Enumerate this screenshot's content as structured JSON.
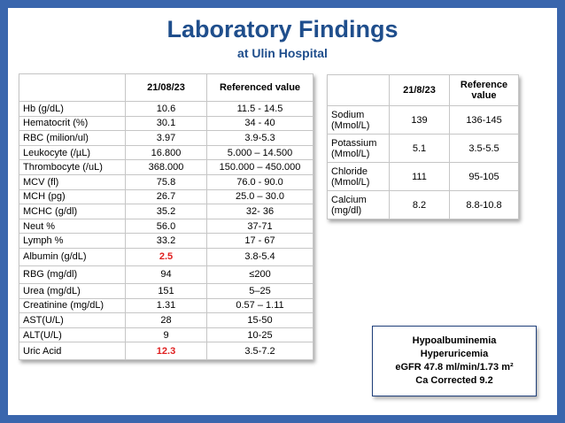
{
  "title": "Laboratory Findings",
  "subtitle": "at Ulin Hospital",
  "left_table": {
    "headers": [
      "",
      "21/08/23",
      "Referenced value"
    ],
    "rows": [
      {
        "label": "Hb (g/dL)",
        "value": "10.6",
        "ref": "11.5 - 14.5",
        "flag": false
      },
      {
        "label": "Hematocrit (%)",
        "value": "30.1",
        "ref": "34 - 40",
        "flag": false
      },
      {
        "label": "RBC (milion/ul)",
        "value": "3.97",
        "ref": "3.9-5.3",
        "flag": false
      },
      {
        "label": "Leukocyte (/µL)",
        "value": "16.800",
        "ref": "5.000 – 14.500",
        "flag": false
      },
      {
        "label": "Thrombocyte (/uL)",
        "value": "368.000",
        "ref": "150.000 – 450.000",
        "flag": false
      },
      {
        "label": "MCV (fl)",
        "value": "75.8",
        "ref": "76.0 - 90.0",
        "flag": false
      },
      {
        "label": "MCH (pg)",
        "value": "26.7",
        "ref": "25.0 – 30.0",
        "flag": false
      },
      {
        "label": "MCHC (g/dl)",
        "value": "35.2",
        "ref": "32- 36",
        "flag": false
      },
      {
        "label": "Neut %",
        "value": "56.0",
        "ref": "37-71",
        "flag": false
      },
      {
        "label": "Lymph %",
        "value": "33.2",
        "ref": "17 - 67",
        "flag": false
      },
      {
        "label": "Albumin (g/dL)",
        "value": "2.5",
        "ref": "3.8-5.4",
        "flag": true
      },
      {
        "label": "RBG (mg/dl)",
        "value": "94",
        "ref": "≤200",
        "flag": false
      },
      {
        "label": "Urea (mg/dL)",
        "value": "151",
        "ref": "5–25",
        "flag": false
      },
      {
        "label": "Creatinine (mg/dL)",
        "value": "1.31",
        "ref": "0.57 – 1.11",
        "flag": false
      },
      {
        "label": "AST(U/L)",
        "value": "28",
        "ref": "15-50",
        "flag": false
      },
      {
        "label": "ALT(U/L)",
        "value": "9",
        "ref": "10-25",
        "flag": false
      },
      {
        "label": "Uric Acid",
        "value": "12.3",
        "ref": "3.5-7.2",
        "flag": true
      }
    ]
  },
  "right_table": {
    "headers": [
      "",
      "21/8/23",
      "Reference value"
    ],
    "rows": [
      {
        "label": "Sodium (Mmol/L)",
        "value": "139",
        "ref": "136-145"
      },
      {
        "label": "Potassium (Mmol/L)",
        "value": "5.1",
        "ref": "3.5-5.5"
      },
      {
        "label": "Chloride (Mmol/L)",
        "value": "111",
        "ref": "95-105"
      },
      {
        "label": "Calcium (mg/dl)",
        "value": "8.2",
        "ref": "8.8-10.8"
      }
    ]
  },
  "summary": {
    "line1": "Hypoalbuminemia",
    "line2": "Hyperuricemia",
    "line3": "eGFR 47.8 ml/min/1.73 m²",
    "line4": "Ca Corrected 9.2"
  },
  "colors": {
    "background": "#3a66ad",
    "title": "#1f4e8c",
    "abnormal": "#e02020"
  }
}
